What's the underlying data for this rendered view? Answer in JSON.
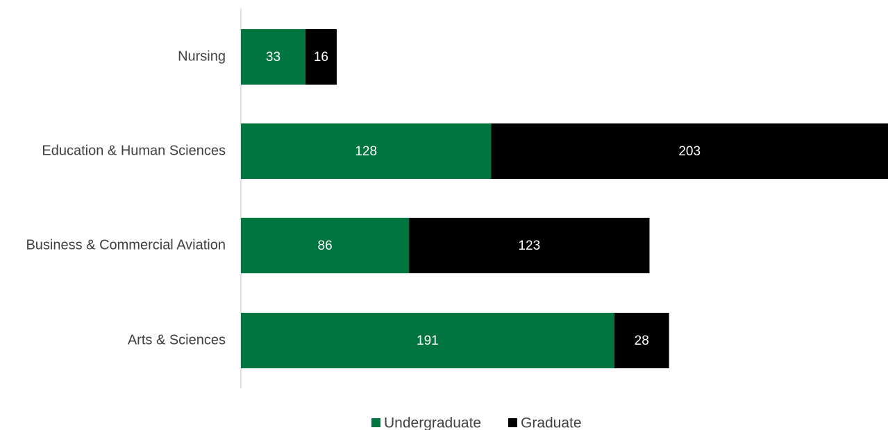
{
  "chart_data": {
    "type": "bar",
    "orientation": "horizontal",
    "stacked": true,
    "categories": [
      "Nursing",
      "Education & Human Sciences",
      "Business & Commercial Aviation",
      "Arts & Sciences"
    ],
    "series": [
      {
        "name": "Undergraduate",
        "values": [
          33,
          128,
          86,
          191
        ],
        "color": "#007540"
      },
      {
        "name": "Graduate",
        "values": [
          16,
          203,
          123,
          28
        ],
        "color": "#000000"
      }
    ],
    "title": "",
    "xlabel": "",
    "ylabel": "",
    "xlim": [
      0,
      331
    ],
    "grid": false,
    "legend_position": "bottom",
    "data_labels": true
  }
}
